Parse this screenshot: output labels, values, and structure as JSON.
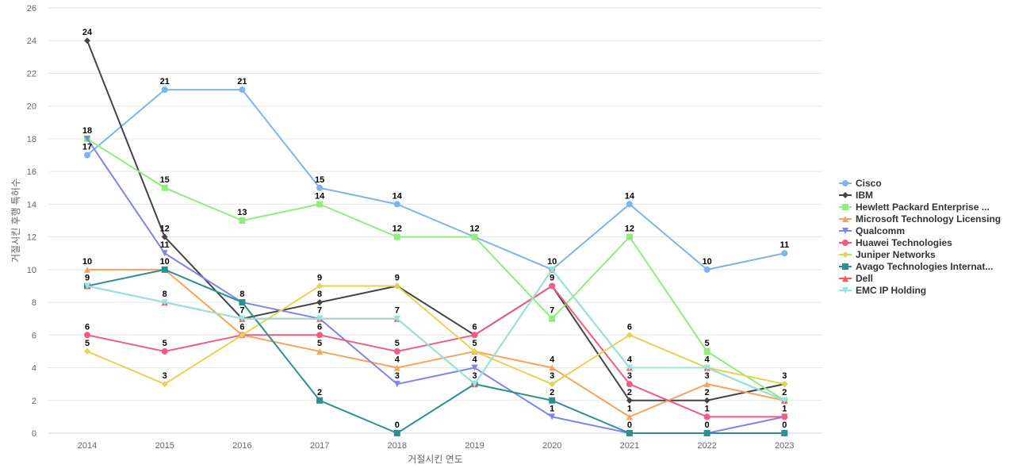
{
  "chart_data": {
    "type": "line",
    "title": "",
    "xlabel": "거절시킨 연도",
    "ylabel": "거절시킨 후행 특허수",
    "x": [
      "2014",
      "2015",
      "2016",
      "2017",
      "2018",
      "2019",
      "2020",
      "2021",
      "2022",
      "2023"
    ],
    "ylim": [
      0,
      26
    ],
    "yticks": [
      0,
      2,
      4,
      6,
      8,
      10,
      12,
      14,
      16,
      18,
      20,
      22,
      24,
      26
    ],
    "grid": true,
    "legend_position": "right",
    "series": [
      {
        "name": "Cisco",
        "color": "#7cb5ec",
        "marker": "circle",
        "values": [
          17,
          21,
          21,
          15,
          14,
          12,
          10,
          14,
          10,
          11
        ]
      },
      {
        "name": "IBM",
        "color": "#434348",
        "marker": "diamond",
        "values": [
          24,
          12,
          7,
          8,
          9,
          6,
          9,
          2,
          2,
          3
        ]
      },
      {
        "name": "Hewlett Packard Enterprise ...",
        "color": "#90ed7d",
        "marker": "square",
        "values": [
          18,
          15,
          13,
          14,
          12,
          12,
          7,
          12,
          5,
          2
        ]
      },
      {
        "name": "Microsoft Technology Licensing",
        "color": "#f7a35c",
        "marker": "triangle",
        "values": [
          10,
          10,
          6,
          5,
          4,
          5,
          4,
          1,
          3,
          2
        ]
      },
      {
        "name": "Qualcomm",
        "color": "#8085e9",
        "marker": "triangle-down",
        "values": [
          18,
          11,
          8,
          7,
          3,
          4,
          1,
          0,
          0,
          1
        ]
      },
      {
        "name": "Huawei Technologies",
        "color": "#f15c80",
        "marker": "circle",
        "values": [
          6,
          5,
          6,
          6,
          5,
          6,
          9,
          3,
          1,
          1
        ]
      },
      {
        "name": "Juniper Networks",
        "color": "#e4d354",
        "marker": "diamond",
        "values": [
          5,
          3,
          6,
          9,
          9,
          5,
          3,
          6,
          4,
          3
        ]
      },
      {
        "name": "Avago Technologies Internat...",
        "color": "#2b908f",
        "marker": "square",
        "values": [
          9,
          10,
          8,
          2,
          0,
          3,
          2,
          0,
          0,
          0
        ]
      },
      {
        "name": "Dell",
        "color": "#f45b5b",
        "marker": "triangle",
        "values": [
          9,
          8,
          7,
          7,
          7,
          3,
          10,
          4,
          4,
          2
        ]
      },
      {
        "name": "EMC IP Holding",
        "color": "#91e8e1",
        "marker": "triangle-down",
        "values": [
          9,
          8,
          7,
          7,
          7,
          3,
          10,
          4,
          4,
          2
        ]
      }
    ],
    "data_labels": [
      {
        "x": "2014",
        "y": 24,
        "text": "24",
        "dx": 0,
        "dy": -7
      },
      {
        "x": "2014",
        "y": 18,
        "text": "18",
        "dx": 0,
        "dy": -7
      },
      {
        "x": "2014",
        "y": 17,
        "text": "17",
        "dx": 0,
        "dy": -7
      },
      {
        "x": "2014",
        "y": 10,
        "text": "10",
        "dx": 0,
        "dy": -7
      },
      {
        "x": "2014",
        "y": 9,
        "text": "9",
        "dx": 0,
        "dy": -7
      },
      {
        "x": "2014",
        "y": 6,
        "text": "6",
        "dx": 0,
        "dy": -7
      },
      {
        "x": "2014",
        "y": 5,
        "text": "5",
        "dx": 0,
        "dy": -7
      },
      {
        "x": "2015",
        "y": 21,
        "text": "21",
        "dx": 0,
        "dy": -7
      },
      {
        "x": "2015",
        "y": 15,
        "text": "15",
        "dx": 0,
        "dy": -7
      },
      {
        "x": "2015",
        "y": 12,
        "text": "12",
        "dx": 0,
        "dy": -7
      },
      {
        "x": "2015",
        "y": 11,
        "text": "11",
        "dx": 0,
        "dy": -7
      },
      {
        "x": "2015",
        "y": 10,
        "text": "10",
        "dx": 0,
        "dy": -7
      },
      {
        "x": "2015",
        "y": 8,
        "text": "8",
        "dx": 0,
        "dy": -7
      },
      {
        "x": "2015",
        "y": 5,
        "text": "5",
        "dx": 0,
        "dy": -7
      },
      {
        "x": "2015",
        "y": 3,
        "text": "3",
        "dx": 0,
        "dy": -7
      },
      {
        "x": "2016",
        "y": 21,
        "text": "21",
        "dx": 0,
        "dy": -7
      },
      {
        "x": "2016",
        "y": 13,
        "text": "13",
        "dx": 0,
        "dy": -7
      },
      {
        "x": "2016",
        "y": 8,
        "text": "8",
        "dx": 0,
        "dy": -7
      },
      {
        "x": "2016",
        "y": 7,
        "text": "7",
        "dx": 0,
        "dy": -7
      },
      {
        "x": "2016",
        "y": 6,
        "text": "6",
        "dx": 0,
        "dy": -7
      },
      {
        "x": "2017",
        "y": 15,
        "text": "15",
        "dx": 0,
        "dy": -7
      },
      {
        "x": "2017",
        "y": 14,
        "text": "14",
        "dx": 0,
        "dy": -7
      },
      {
        "x": "2017",
        "y": 9,
        "text": "9",
        "dx": 0,
        "dy": -7
      },
      {
        "x": "2017",
        "y": 8,
        "text": "8",
        "dx": 0,
        "dy": -7
      },
      {
        "x": "2017",
        "y": 7,
        "text": "7",
        "dx": 0,
        "dy": -7
      },
      {
        "x": "2017",
        "y": 6,
        "text": "6",
        "dx": 0,
        "dy": -7
      },
      {
        "x": "2017",
        "y": 5,
        "text": "5",
        "dx": 0,
        "dy": -7
      },
      {
        "x": "2017",
        "y": 2,
        "text": "2",
        "dx": 0,
        "dy": -7
      },
      {
        "x": "2018",
        "y": 14,
        "text": "14",
        "dx": 0,
        "dy": -7
      },
      {
        "x": "2018",
        "y": 12,
        "text": "12",
        "dx": 0,
        "dy": -7
      },
      {
        "x": "2018",
        "y": 9,
        "text": "9",
        "dx": 0,
        "dy": -7
      },
      {
        "x": "2018",
        "y": 7,
        "text": "7",
        "dx": 0,
        "dy": -7
      },
      {
        "x": "2018",
        "y": 5,
        "text": "5",
        "dx": 0,
        "dy": -7
      },
      {
        "x": "2018",
        "y": 4,
        "text": "4",
        "dx": 0,
        "dy": -7
      },
      {
        "x": "2018",
        "y": 3,
        "text": "3",
        "dx": 0,
        "dy": -7
      },
      {
        "x": "2018",
        "y": 0,
        "text": "0",
        "dx": 0,
        "dy": -7
      },
      {
        "x": "2019",
        "y": 12,
        "text": "12",
        "dx": 0,
        "dy": -7
      },
      {
        "x": "2019",
        "y": 6,
        "text": "6",
        "dx": 0,
        "dy": -7
      },
      {
        "x": "2019",
        "y": 5,
        "text": "5",
        "dx": 0,
        "dy": -7
      },
      {
        "x": "2019",
        "y": 4,
        "text": "4",
        "dx": 0,
        "dy": -7
      },
      {
        "x": "2019",
        "y": 3,
        "text": "3",
        "dx": 0,
        "dy": -7
      },
      {
        "x": "2020",
        "y": 10,
        "text": "10",
        "dx": 0,
        "dy": -7
      },
      {
        "x": "2020",
        "y": 9,
        "text": "9",
        "dx": 0,
        "dy": -7
      },
      {
        "x": "2020",
        "y": 7,
        "text": "7",
        "dx": 0,
        "dy": -7
      },
      {
        "x": "2020",
        "y": 4,
        "text": "4",
        "dx": 0,
        "dy": -7
      },
      {
        "x": "2020",
        "y": 3,
        "text": "3",
        "dx": 0,
        "dy": -7
      },
      {
        "x": "2020",
        "y": 2,
        "text": "2",
        "dx": 0,
        "dy": -7
      },
      {
        "x": "2020",
        "y": 1,
        "text": "1",
        "dx": 0,
        "dy": -7
      },
      {
        "x": "2021",
        "y": 14,
        "text": "14",
        "dx": 0,
        "dy": -7
      },
      {
        "x": "2021",
        "y": 12,
        "text": "12",
        "dx": 0,
        "dy": -7
      },
      {
        "x": "2021",
        "y": 6,
        "text": "6",
        "dx": 0,
        "dy": -7
      },
      {
        "x": "2021",
        "y": 4,
        "text": "4",
        "dx": 0,
        "dy": -7
      },
      {
        "x": "2021",
        "y": 3,
        "text": "3",
        "dx": 0,
        "dy": -7
      },
      {
        "x": "2021",
        "y": 2,
        "text": "2",
        "dx": 0,
        "dy": -7
      },
      {
        "x": "2021",
        "y": 1,
        "text": "1",
        "dx": 0,
        "dy": -7
      },
      {
        "x": "2021",
        "y": 0,
        "text": "0",
        "dx": 0,
        "dy": -7
      },
      {
        "x": "2022",
        "y": 10,
        "text": "10",
        "dx": 0,
        "dy": -7
      },
      {
        "x": "2022",
        "y": 5,
        "text": "5",
        "dx": 0,
        "dy": -7
      },
      {
        "x": "2022",
        "y": 4,
        "text": "4",
        "dx": 0,
        "dy": -7
      },
      {
        "x": "2022",
        "y": 3,
        "text": "3",
        "dx": 0,
        "dy": -7
      },
      {
        "x": "2022",
        "y": 2,
        "text": "2",
        "dx": 0,
        "dy": -7
      },
      {
        "x": "2022",
        "y": 1,
        "text": "1",
        "dx": 0,
        "dy": -7
      },
      {
        "x": "2022",
        "y": 0,
        "text": "0",
        "dx": 0,
        "dy": -7
      },
      {
        "x": "2023",
        "y": 11,
        "text": "11",
        "dx": 0,
        "dy": -7
      },
      {
        "x": "2023",
        "y": 3,
        "text": "3",
        "dx": 0,
        "dy": -7
      },
      {
        "x": "2023",
        "y": 2,
        "text": "2",
        "dx": 0,
        "dy": -7
      },
      {
        "x": "2023",
        "y": 1,
        "text": "1",
        "dx": 0,
        "dy": -7
      },
      {
        "x": "2023",
        "y": 0,
        "text": "0",
        "dx": 0,
        "dy": -7
      }
    ]
  }
}
